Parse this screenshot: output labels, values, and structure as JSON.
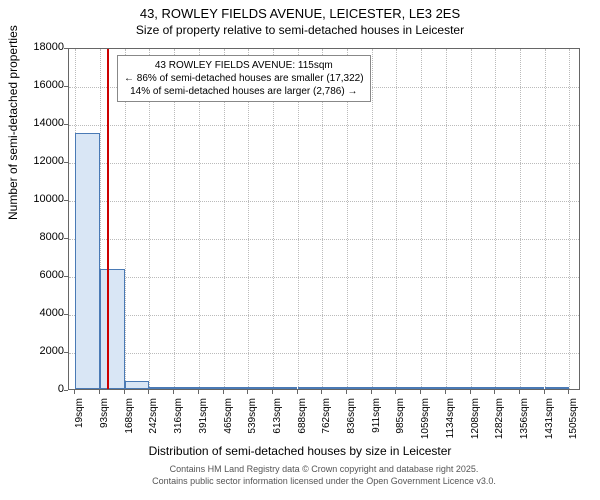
{
  "title_main": "43, ROWLEY FIELDS AVENUE, LEICESTER, LE3 2ES",
  "title_sub": "Size of property relative to semi-detached houses in Leicester",
  "y_axis_title": "Number of semi-detached properties",
  "x_axis_title": "Distribution of semi-detached houses by size in Leicester",
  "footer_line1": "Contains HM Land Registry data © Crown copyright and database right 2025.",
  "footer_line2": "Contains public sector information licensed under the Open Government Licence v3.0.",
  "callout": {
    "line1": "43 ROWLEY FIELDS AVENUE: 115sqm",
    "line2": "← 86% of semi-detached houses are smaller (17,322)",
    "line3": "14% of semi-detached houses are larger (2,786) →"
  },
  "chart": {
    "type": "histogram",
    "background_color": "#ffffff",
    "grid_color": "#bbbbbb",
    "axis_color": "#666666",
    "bar_fill": "#d9e6f5",
    "bar_border": "#4a7ab5",
    "marker_color": "#cc0000",
    "title_fontsize": 13,
    "label_fontsize": 12,
    "tick_fontsize": 11,
    "ylim": [
      0,
      18000
    ],
    "ytick_step": 2000,
    "yticks": [
      0,
      2000,
      4000,
      6000,
      8000,
      10000,
      12000,
      14000,
      16000,
      18000
    ],
    "xlim": [
      0,
      1540
    ],
    "xticks": [
      19,
      93,
      168,
      242,
      316,
      391,
      465,
      539,
      613,
      688,
      762,
      836,
      911,
      985,
      1059,
      1134,
      1208,
      1282,
      1356,
      1431,
      1505
    ],
    "xtick_labels": [
      "19sqm",
      "93sqm",
      "168sqm",
      "242sqm",
      "316sqm",
      "391sqm",
      "465sqm",
      "539sqm",
      "613sqm",
      "688sqm",
      "762sqm",
      "836sqm",
      "911sqm",
      "985sqm",
      "1059sqm",
      "1134sqm",
      "1208sqm",
      "1282sqm",
      "1356sqm",
      "1431sqm",
      "1505sqm"
    ],
    "bar_width_sqm": 74,
    "bars": [
      {
        "x_start": 19,
        "value": 13500
      },
      {
        "x_start": 93,
        "value": 6300
      },
      {
        "x_start": 168,
        "value": 420
      },
      {
        "x_start": 242,
        "value": 90
      },
      {
        "x_start": 316,
        "value": 45
      },
      {
        "x_start": 391,
        "value": 25
      },
      {
        "x_start": 465,
        "value": 12
      },
      {
        "x_start": 539,
        "value": 8
      },
      {
        "x_start": 613,
        "value": 6
      },
      {
        "x_start": 688,
        "value": 4
      },
      {
        "x_start": 762,
        "value": 4
      },
      {
        "x_start": 836,
        "value": 3
      },
      {
        "x_start": 911,
        "value": 2
      },
      {
        "x_start": 985,
        "value": 2
      },
      {
        "x_start": 1059,
        "value": 2
      },
      {
        "x_start": 1134,
        "value": 1
      },
      {
        "x_start": 1208,
        "value": 1
      },
      {
        "x_start": 1282,
        "value": 1
      },
      {
        "x_start": 1356,
        "value": 1
      },
      {
        "x_start": 1431,
        "value": 1
      }
    ],
    "marker_x": 115
  }
}
